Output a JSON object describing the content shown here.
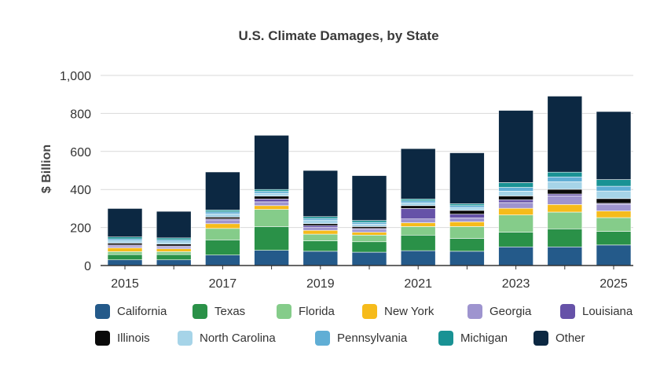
{
  "chart_data": {
    "type": "bar",
    "stacked": true,
    "title": "U.S. Climate Damages, by State",
    "xlabel": "",
    "ylabel": "$ Billion",
    "ylim": [
      0,
      1000
    ],
    "yticks": [
      0,
      200,
      400,
      600,
      800,
      1000
    ],
    "ytick_labels": [
      "0",
      "200",
      "400",
      "600",
      "800",
      "1,000"
    ],
    "categories": [
      "2015",
      "2016",
      "2017",
      "2018",
      "2019",
      "2020",
      "2021",
      "2022",
      "2023",
      "2024",
      "2025"
    ],
    "xtick_labels": [
      "2015",
      "",
      "2017",
      "",
      "2019",
      "",
      "2021",
      "",
      "2023",
      "",
      "2025"
    ],
    "grid": "horizontal",
    "legend_position": "bottom",
    "series": [
      {
        "name": "California",
        "color": "#245a8a",
        "values": [
          30,
          30,
          55,
          80,
          75,
          70,
          78,
          75,
          98,
          98,
          108
        ]
      },
      {
        "name": "Texas",
        "color": "#2a9148",
        "values": [
          28,
          28,
          80,
          125,
          55,
          55,
          82,
          68,
          78,
          95,
          72
        ]
      },
      {
        "name": "Florida",
        "color": "#85cc8a",
        "values": [
          15,
          15,
          60,
          90,
          35,
          35,
          45,
          62,
          90,
          88,
          72
        ]
      },
      {
        "name": "New York",
        "color": "#f6bb1b",
        "values": [
          20,
          15,
          25,
          20,
          20,
          15,
          20,
          25,
          35,
          40,
          35
        ]
      },
      {
        "name": "Georgia",
        "color": "#9e94cf",
        "values": [
          10,
          10,
          20,
          20,
          15,
          15,
          20,
          20,
          30,
          45,
          35
        ]
      },
      {
        "name": "Louisiana",
        "color": "#6652a8",
        "values": [
          5,
          5,
          5,
          15,
          10,
          5,
          55,
          20,
          15,
          10,
          5
        ]
      },
      {
        "name": "Illinois",
        "color": "#0a0a0a",
        "values": [
          10,
          10,
          10,
          15,
          10,
          10,
          15,
          20,
          20,
          25,
          25
        ]
      },
      {
        "name": "North Carolina",
        "color": "#a6d4e8",
        "values": [
          12,
          12,
          17,
          15,
          17,
          12,
          15,
          15,
          25,
          40,
          40
        ]
      },
      {
        "name": "Pennsylvania",
        "color": "#60aed5",
        "values": [
          10,
          10,
          10,
          10,
          10,
          10,
          10,
          10,
          20,
          25,
          25
        ]
      },
      {
        "name": "Michigan",
        "color": "#199294",
        "values": [
          10,
          10,
          10,
          10,
          10,
          10,
          10,
          10,
          25,
          25,
          35
        ]
      },
      {
        "name": "Other",
        "color": "#0c2842",
        "values": [
          150,
          140,
          200,
          285,
          243,
          236,
          265,
          268,
          380,
          400,
          358
        ]
      }
    ]
  }
}
